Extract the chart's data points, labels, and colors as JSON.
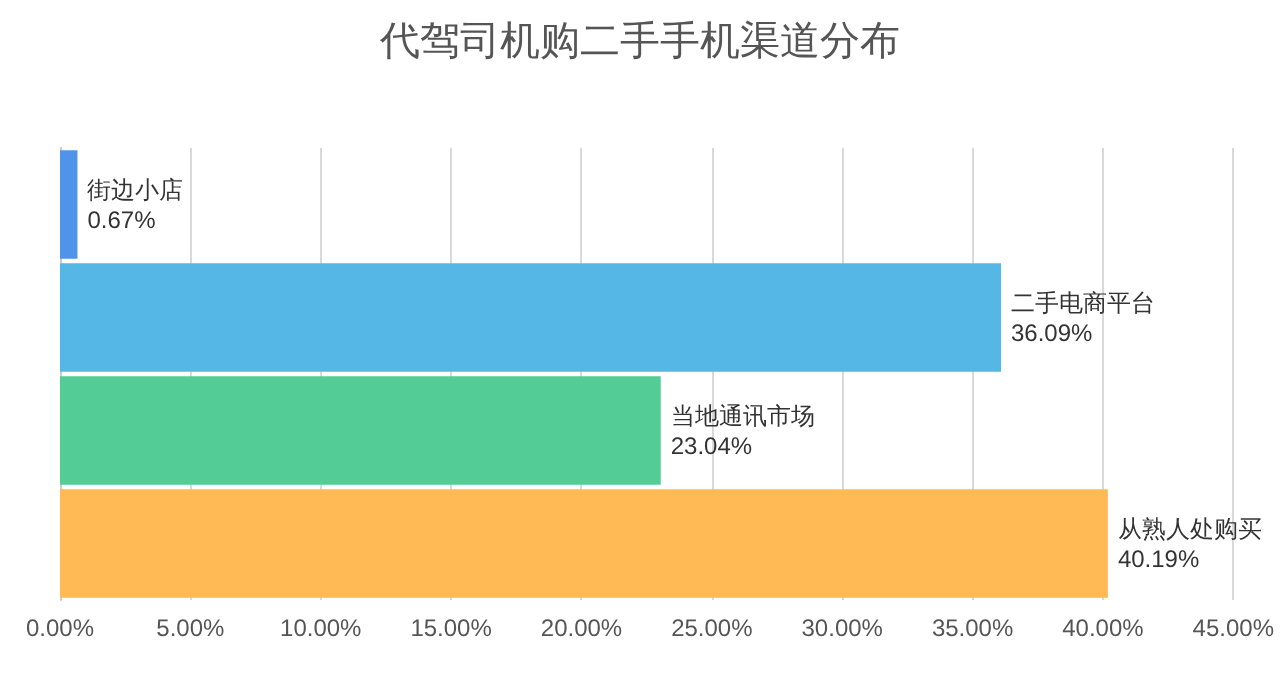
{
  "chart_data": {
    "type": "bar",
    "title": "代驾司机购二手手机渠道分布",
    "orientation": "horizontal",
    "categories": [
      "街边小店",
      "二手电商平台",
      "当地通讯市场",
      "从熟人处购买"
    ],
    "values": [
      0.67,
      36.09,
      23.04,
      40.19
    ],
    "colors": [
      "#4f94e8",
      "#55b7e6",
      "#53cc96",
      "#ffb955"
    ],
    "value_labels": [
      "0.67%",
      "36.09%",
      "23.04%",
      "40.19%"
    ],
    "xlim": [
      0,
      45
    ],
    "xticks": [
      {
        "value": 0,
        "label": "0.00%"
      },
      {
        "value": 5,
        "label": "5.00%"
      },
      {
        "value": 10,
        "label": "10.00%"
      },
      {
        "value": 15,
        "label": "15.00%"
      },
      {
        "value": 20,
        "label": "20.00%"
      },
      {
        "value": 25,
        "label": "25.00%"
      },
      {
        "value": 30,
        "label": "30.00%"
      },
      {
        "value": 35,
        "label": "35.00%"
      },
      {
        "value": 40,
        "label": "40.00%"
      },
      {
        "value": 45,
        "label": "45.00%"
      }
    ],
    "grid": "x",
    "tick_labels": "x"
  }
}
